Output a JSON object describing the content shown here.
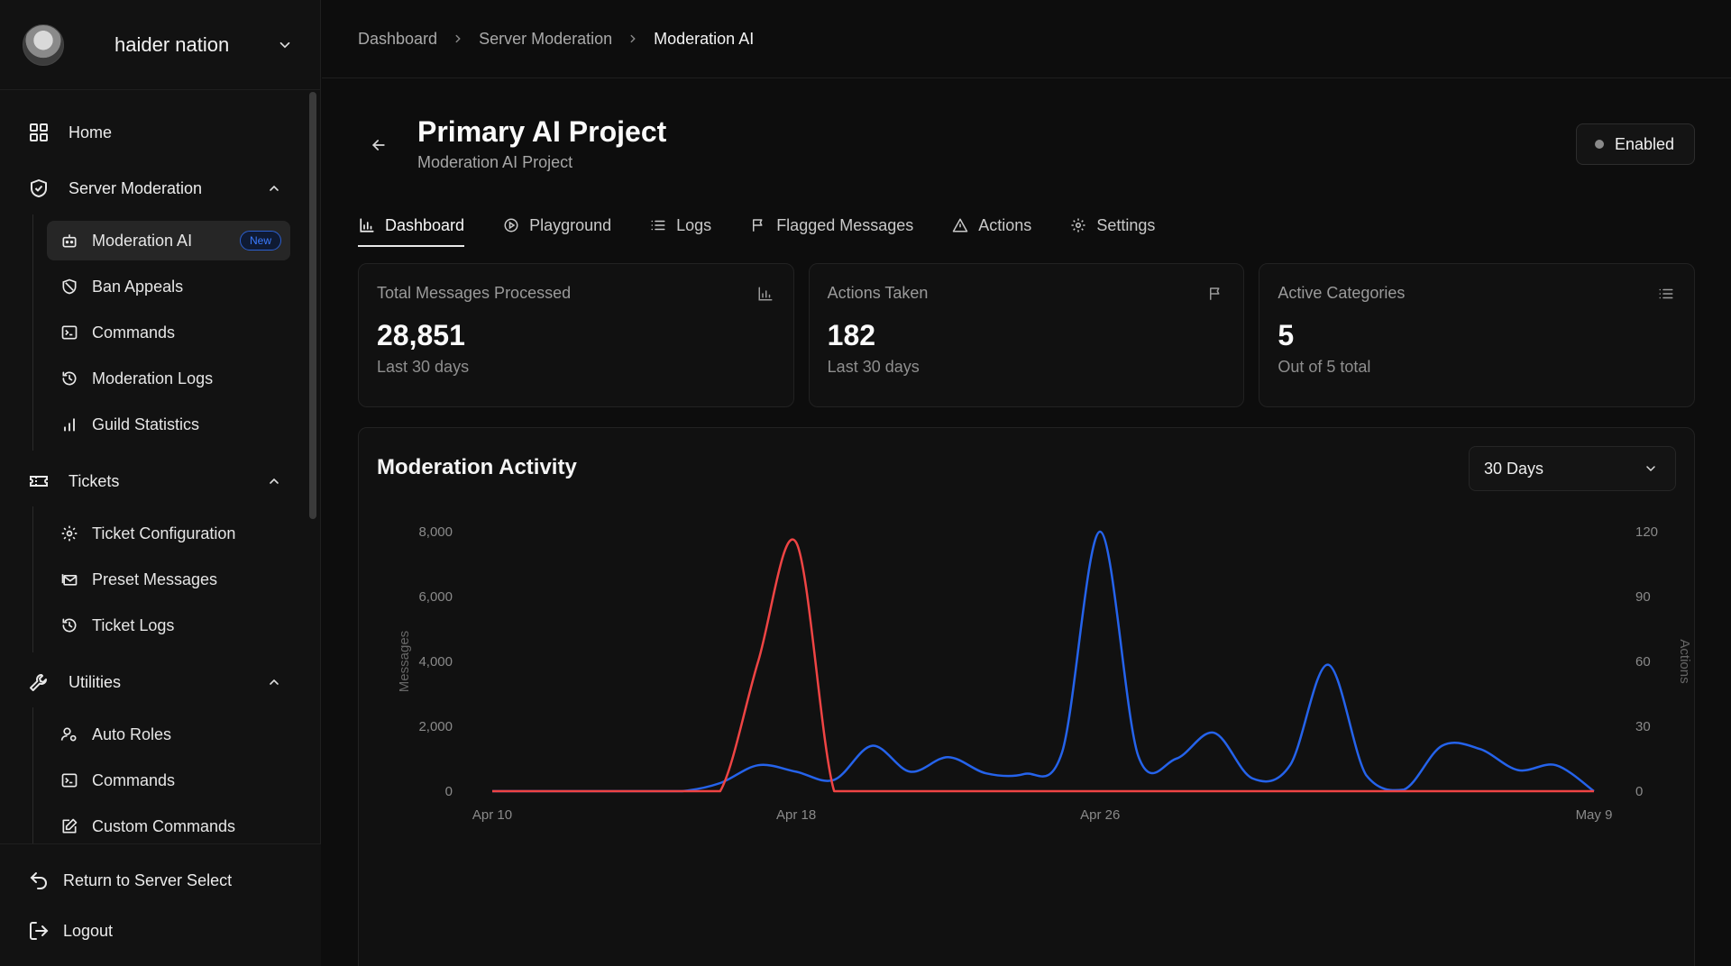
{
  "account": {
    "name": "haider nation"
  },
  "sidebar": {
    "home": "Home",
    "server_moderation": {
      "label": "Server Moderation",
      "items": [
        {
          "label": "Moderation AI",
          "badge": "New",
          "active": true,
          "icon": "robot-icon"
        },
        {
          "label": "Ban Appeals",
          "icon": "ban-icon"
        },
        {
          "label": "Commands",
          "icon": "terminal-icon"
        },
        {
          "label": "Moderation Logs",
          "icon": "history-icon"
        },
        {
          "label": "Guild Statistics",
          "icon": "bar-chart-icon"
        }
      ]
    },
    "tickets": {
      "label": "Tickets",
      "items": [
        {
          "label": "Ticket Configuration",
          "icon": "gear-icon"
        },
        {
          "label": "Preset Messages",
          "icon": "mail-stack-icon"
        },
        {
          "label": "Ticket Logs",
          "icon": "history-icon"
        }
      ]
    },
    "utilities": {
      "label": "Utilities",
      "items": [
        {
          "label": "Auto Roles",
          "icon": "user-gear-icon"
        },
        {
          "label": "Commands",
          "icon": "terminal-icon"
        },
        {
          "label": "Custom Commands",
          "icon": "edit-icon"
        }
      ]
    },
    "footer": {
      "return": "Return to Server Select",
      "logout": "Logout"
    }
  },
  "breadcrumb": [
    "Dashboard",
    "Server Moderation",
    "Moderation AI"
  ],
  "header": {
    "title": "Primary AI Project",
    "subtitle": "Moderation AI Project",
    "status": "Enabled"
  },
  "tabs": [
    {
      "label": "Dashboard",
      "icon": "bar-chart-icon",
      "active": true
    },
    {
      "label": "Playground",
      "icon": "play-circle-icon"
    },
    {
      "label": "Logs",
      "icon": "list-icon"
    },
    {
      "label": "Flagged Messages",
      "icon": "flag-icon"
    },
    {
      "label": "Actions",
      "icon": "warning-icon"
    },
    {
      "label": "Settings",
      "icon": "gear-icon"
    }
  ],
  "stats": [
    {
      "label": "Total Messages Processed",
      "value": "28,851",
      "sub": "Last 30 days",
      "icon": "bar-chart-icon"
    },
    {
      "label": "Actions Taken",
      "value": "182",
      "sub": "Last 30 days",
      "icon": "flag-icon"
    },
    {
      "label": "Active Categories",
      "value": "5",
      "sub": "Out of 5 total",
      "icon": "list-icon"
    }
  ],
  "activity": {
    "title": "Moderation Activity",
    "range": "30 Days"
  },
  "colors": {
    "messages": "#2563eb",
    "actions": "#ef4444",
    "accent_badge": "#3b7bff"
  },
  "chart_data": {
    "type": "line",
    "title": "Moderation Activity",
    "xlabel": "",
    "ylabel": "Messages",
    "y2label": "Actions",
    "ylim": [
      0,
      8000
    ],
    "y2lim": [
      0,
      120
    ],
    "yticks": [
      "8,000",
      "6,000",
      "4,000",
      "2,000",
      "0"
    ],
    "y2ticks": [
      "120",
      "90",
      "60",
      "30",
      "0"
    ],
    "xtick_labels": [
      {
        "label": "Apr 10",
        "day": 0
      },
      {
        "label": "Apr 18",
        "day": 8
      },
      {
        "label": "Apr 26",
        "day": 16
      },
      {
        "label": "May 9",
        "day": 29
      }
    ],
    "grid": false,
    "series": [
      {
        "axis": "left",
        "color": "#2563eb",
        "values": [
          0,
          0,
          0,
          0,
          0,
          0,
          250,
          800,
          600,
          350,
          1400,
          600,
          1050,
          550,
          530,
          1200,
          8000,
          1100,
          1000,
          1800,
          400,
          800,
          3900,
          500,
          50,
          1400,
          1300,
          650,
          800,
          0
        ]
      },
      {
        "axis": "right",
        "color": "#ef4444",
        "values": [
          0,
          0,
          0,
          0,
          0,
          0,
          0,
          60,
          115,
          0,
          0,
          0,
          0,
          0,
          0,
          0,
          0,
          0,
          0,
          0,
          0,
          0,
          0,
          0,
          0,
          0,
          0,
          0,
          0,
          0
        ]
      }
    ]
  }
}
